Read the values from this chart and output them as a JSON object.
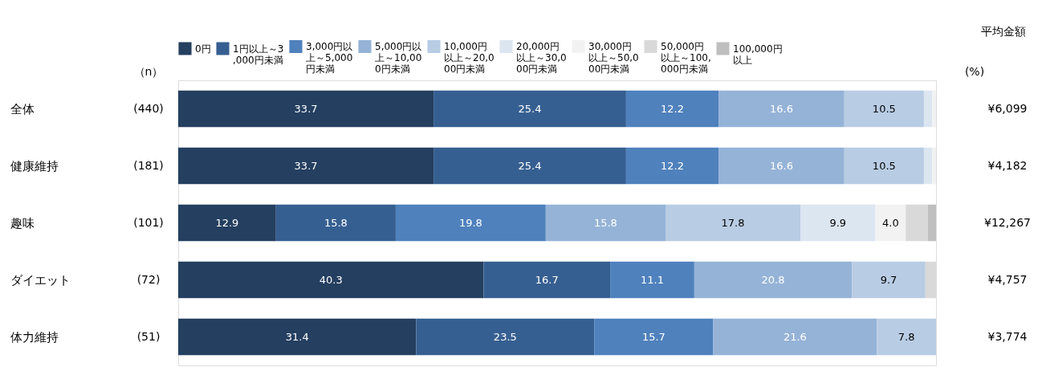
{
  "chart_data": {
    "type": "bar",
    "orientation": "horizontal",
    "stacked": true,
    "legend": "top",
    "xlim": [
      0,
      100
    ],
    "categories": [
      "全体",
      "健康維持",
      "趣味",
      "ダイエット",
      "体力維持"
    ],
    "series": [
      {
        "name": "0円",
        "color": "#243f60",
        "values": [
          33.7,
          33.7,
          12.9,
          40.3,
          31.4
        ],
        "value_labels": [
          "33.7",
          "33.7",
          "12.9",
          "40.3",
          "31.4"
        ]
      },
      {
        "name": "1円以上～3,000円未満",
        "color": "#365f91",
        "values": [
          25.4,
          25.4,
          15.8,
          16.7,
          23.5
        ],
        "value_labels": [
          "25.4",
          "25.4",
          "15.8",
          "16.7",
          "23.5"
        ]
      },
      {
        "name": "3,000円以上～5,000円未満",
        "color": "#4f81bd",
        "values": [
          12.2,
          12.2,
          19.8,
          11.1,
          15.7
        ],
        "value_labels": [
          "12.2",
          "12.2",
          "19.8",
          "11.1",
          "15.7"
        ]
      },
      {
        "name": "5,000円以上～10,000円未満",
        "color": "#95b3d7",
        "values": [
          16.6,
          16.6,
          15.8,
          20.8,
          21.6
        ],
        "value_labels": [
          "16.6",
          "16.6",
          "15.8",
          "20.8",
          "21.6"
        ]
      },
      {
        "name": "10,000円以上～20,000円未満",
        "color": "#b8cce4",
        "values": [
          10.5,
          10.5,
          17.8,
          9.7,
          7.8
        ],
        "value_labels": [
          "10.5",
          "10.5",
          "17.8",
          "9.7",
          "7.8"
        ]
      },
      {
        "name": "20,000円以上～30,000円未満",
        "color": "#dce6f1",
        "values": [
          1.1,
          1.1,
          9.9,
          0,
          0
        ],
        "value_labels": [
          null,
          null,
          "9.9",
          null,
          null
        ]
      },
      {
        "name": "30,000円以上～50,000円未満",
        "color": "#f2f2f2",
        "values": [
          0.5,
          0.5,
          4.0,
          0,
          0
        ],
        "value_labels": [
          null,
          null,
          "4.0",
          null,
          null
        ]
      },
      {
        "name": "50,000円以上～100,000円未満",
        "color": "#d9d9d9",
        "values": [
          0,
          0,
          2.9,
          1.4,
          0
        ],
        "value_labels": [
          null,
          null,
          null,
          null,
          null
        ]
      },
      {
        "name": "100,000円以上",
        "color": "#bfbfbf",
        "values": [
          0,
          0,
          1.1,
          0,
          0
        ],
        "value_labels": [
          null,
          null,
          null,
          null,
          null
        ]
      }
    ],
    "annotations": [
      "（n）",
      "(%)",
      "平均金額",
      "(440)",
      "(181)",
      "(101)",
      "(72)",
      "(51)",
      "¥6,099",
      "¥4,182",
      "¥12,267",
      "¥4,757",
      "¥3,774"
    ]
  }
}
